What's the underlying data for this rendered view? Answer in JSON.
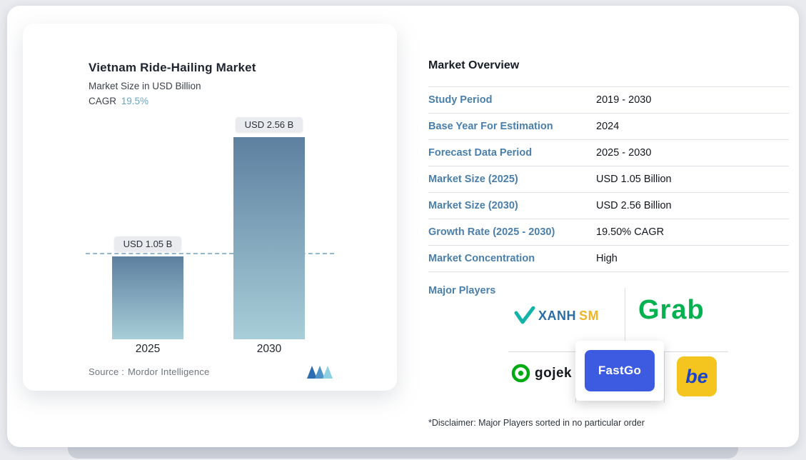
{
  "chart_card": {
    "title": "Vietnam Ride-Hailing Market",
    "subtitle": "Market Size in USD Billion",
    "cagr_label": "CAGR",
    "cagr_value": "19.5%",
    "source_label": "Source :",
    "source_value": "Mordor Intelligence"
  },
  "chart_data": {
    "type": "bar",
    "title": "Vietnam Ride-Hailing Market",
    "subtitle": "Market Size in USD Billion",
    "unit": "USD Billion",
    "categories": [
      "2025",
      "2030"
    ],
    "values": [
      1.05,
      2.56
    ],
    "bar_labels": [
      "USD 1.05 B",
      "USD 2.56 B"
    ],
    "cagr": "19.5%",
    "ylim": [
      0,
      2.56
    ],
    "reference_line": 1.05,
    "grid": false,
    "legend": false,
    "bar_gradient_top": "#5d80a0",
    "bar_gradient_bottom": "#a7ced8"
  },
  "overview": {
    "title": "Market Overview",
    "rows": [
      {
        "label": "Study Period",
        "value": "2019 - 2030"
      },
      {
        "label": "Base Year For Estimation",
        "value": "2024"
      },
      {
        "label": "Forecast Data Period",
        "value": "2025 - 2030"
      },
      {
        "label": "Market Size (2025)",
        "value": "USD 1.05 Billion"
      },
      {
        "label": "Market Size (2030)",
        "value": "USD 2.56 Billion"
      },
      {
        "label": "Growth Rate (2025 - 2030)",
        "value": "19.50% CAGR"
      },
      {
        "label": "Market Concentration",
        "value": "High"
      }
    ],
    "major_players_label": "Major Players",
    "players": [
      {
        "name": "Xanh SM",
        "text_primary": "XANH",
        "text_secondary": "SM"
      },
      {
        "name": "Grab",
        "text": "Grab"
      },
      {
        "name": "gojek",
        "text": "gojek"
      },
      {
        "name": "FastGo",
        "text": "FastGo"
      },
      {
        "name": "be",
        "text": "be"
      }
    ],
    "disclaimer": "*Disclaimer: Major Players sorted in no particular order"
  },
  "colors": {
    "accent_blue": "#4a7fab",
    "cagr_teal": "#69a5bf",
    "grab_green": "#00b14f",
    "gojek_green": "#00aa13",
    "fastgo_blue": "#3d5be0",
    "be_yellow": "#f4c41f",
    "be_blue": "#1d43c8",
    "xanh_blue": "#2b6ca3",
    "xanh_yellow": "#f0b429",
    "xanh_teal": "#12b3a8"
  }
}
